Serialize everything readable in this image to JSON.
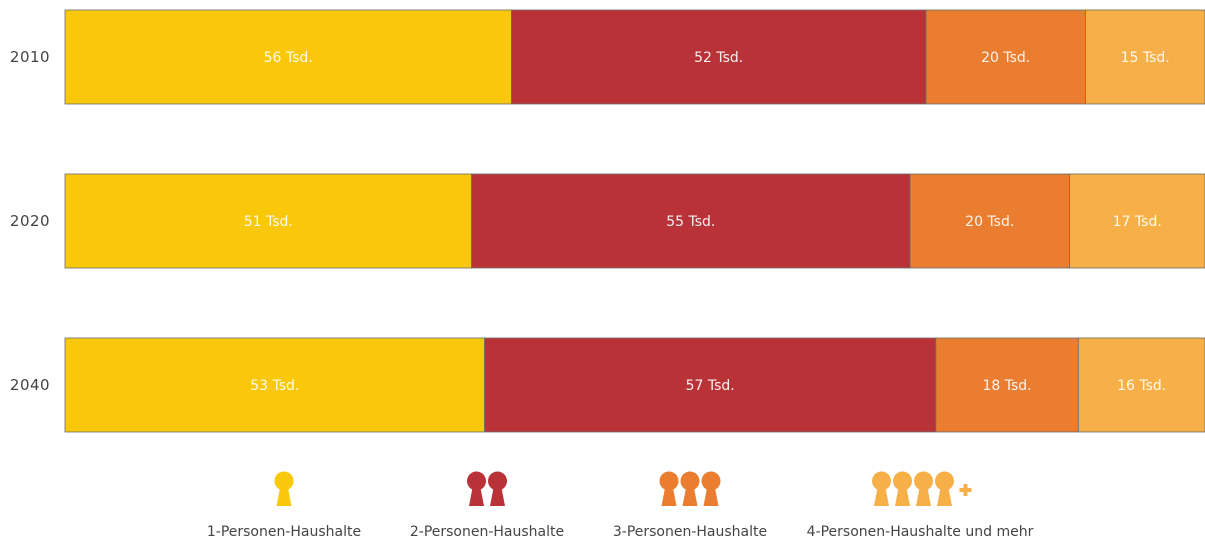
{
  "chart_data": {
    "type": "bar",
    "orientation": "horizontal",
    "stacked": true,
    "normalized": true,
    "categories": [
      "2010",
      "2020",
      "2040"
    ],
    "series": [
      {
        "name": "1-Personen-Haushalte",
        "color": "#fac80a",
        "persons": 1,
        "values": [
          56,
          51,
          53
        ],
        "labels": [
          "56 Tsd.",
          "51 Tsd.",
          "53 Tsd."
        ]
      },
      {
        "name": "2-Personen-Haushalte",
        "color": "#b93238",
        "persons": 2,
        "values": [
          52,
          55,
          57
        ],
        "labels": [
          "52 Tsd.",
          "55 Tsd.",
          "57 Tsd."
        ]
      },
      {
        "name": "3-Personen-Haushalte",
        "color": "#ea7d30",
        "persons": 3,
        "values": [
          20,
          20,
          18
        ],
        "labels": [
          "20 Tsd.",
          "20 Tsd.",
          "18 Tsd."
        ]
      },
      {
        "name": "4-Personen-Haushalte und mehr",
        "color": "#f6b047",
        "persons": 4,
        "plus": true,
        "values": [
          15,
          17,
          16
        ],
        "labels": [
          "15 Tsd.",
          "17 Tsd.",
          "16 Tsd."
        ]
      }
    ],
    "legend_position": "bottom",
    "legend_icon": "person-icon",
    "grid": false
  }
}
